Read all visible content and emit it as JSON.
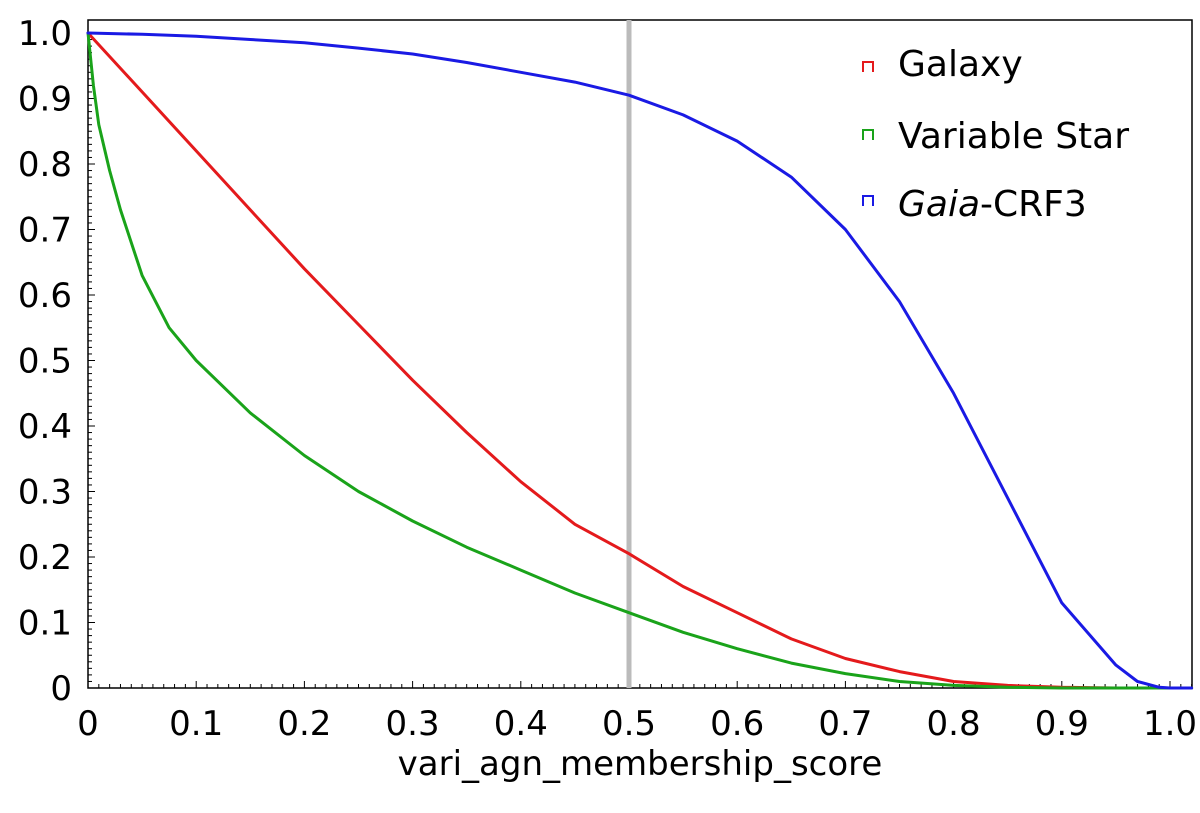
{
  "chart_data": {
    "type": "line",
    "xlabel": "vari_agn_membership_score",
    "ylabel": "",
    "xlim": [
      0,
      1.02
    ],
    "ylim": [
      0,
      1.0
    ],
    "xticks": [
      "0",
      "0.1",
      "0.2",
      "0.3",
      "0.4",
      "0.5",
      "0.6",
      "0.7",
      "0.8",
      "0.9",
      "1.0"
    ],
    "yticks": [
      "0",
      "0.1",
      "0.2",
      "0.3",
      "0.4",
      "0.5",
      "0.6",
      "0.7",
      "0.8",
      "0.9",
      "1.0"
    ],
    "vertical_line_x": 0.5,
    "legend_position": "top-right",
    "series": [
      {
        "name": "Galaxy",
        "color": "#e41a1c",
        "x": [
          0,
          0.05,
          0.1,
          0.15,
          0.2,
          0.25,
          0.3,
          0.35,
          0.4,
          0.45,
          0.5,
          0.55,
          0.6,
          0.65,
          0.7,
          0.75,
          0.8,
          0.85,
          0.9,
          0.95,
          1.0,
          1.02
        ],
        "y": [
          1.0,
          0.91,
          0.82,
          0.73,
          0.64,
          0.555,
          0.47,
          0.39,
          0.315,
          0.25,
          0.205,
          0.155,
          0.115,
          0.075,
          0.045,
          0.025,
          0.01,
          0.004,
          0.001,
          0,
          0,
          0
        ]
      },
      {
        "name": "Variable Star",
        "color": "#1aa31a",
        "x": [
          0,
          0.005,
          0.01,
          0.02,
          0.03,
          0.05,
          0.075,
          0.1,
          0.15,
          0.2,
          0.25,
          0.3,
          0.35,
          0.4,
          0.45,
          0.5,
          0.55,
          0.6,
          0.65,
          0.7,
          0.75,
          0.8,
          0.85,
          0.9,
          0.95,
          1.0,
          1.02
        ],
        "y": [
          1.0,
          0.92,
          0.86,
          0.79,
          0.73,
          0.63,
          0.55,
          0.5,
          0.42,
          0.355,
          0.3,
          0.255,
          0.215,
          0.18,
          0.145,
          0.115,
          0.085,
          0.06,
          0.038,
          0.022,
          0.01,
          0.004,
          0.001,
          0,
          0,
          0,
          0
        ]
      },
      {
        "name": "Gaia-CRF3",
        "color": "#1a1ae4",
        "x": [
          0,
          0.05,
          0.1,
          0.15,
          0.2,
          0.25,
          0.3,
          0.35,
          0.4,
          0.45,
          0.5,
          0.55,
          0.6,
          0.65,
          0.7,
          0.75,
          0.8,
          0.85,
          0.9,
          0.95,
          0.97,
          0.99,
          1.0,
          1.02
        ],
        "y": [
          1.0,
          0.998,
          0.995,
          0.99,
          0.985,
          0.977,
          0.968,
          0.955,
          0.94,
          0.925,
          0.905,
          0.875,
          0.835,
          0.78,
          0.7,
          0.59,
          0.45,
          0.29,
          0.13,
          0.035,
          0.01,
          0.001,
          0,
          0
        ]
      }
    ]
  },
  "legend": {
    "galaxy_label": "Galaxy",
    "variable_star_label": "Variable Star",
    "gaia_label_italic": "Gaia",
    "gaia_label_suffix": "-CRF3"
  }
}
